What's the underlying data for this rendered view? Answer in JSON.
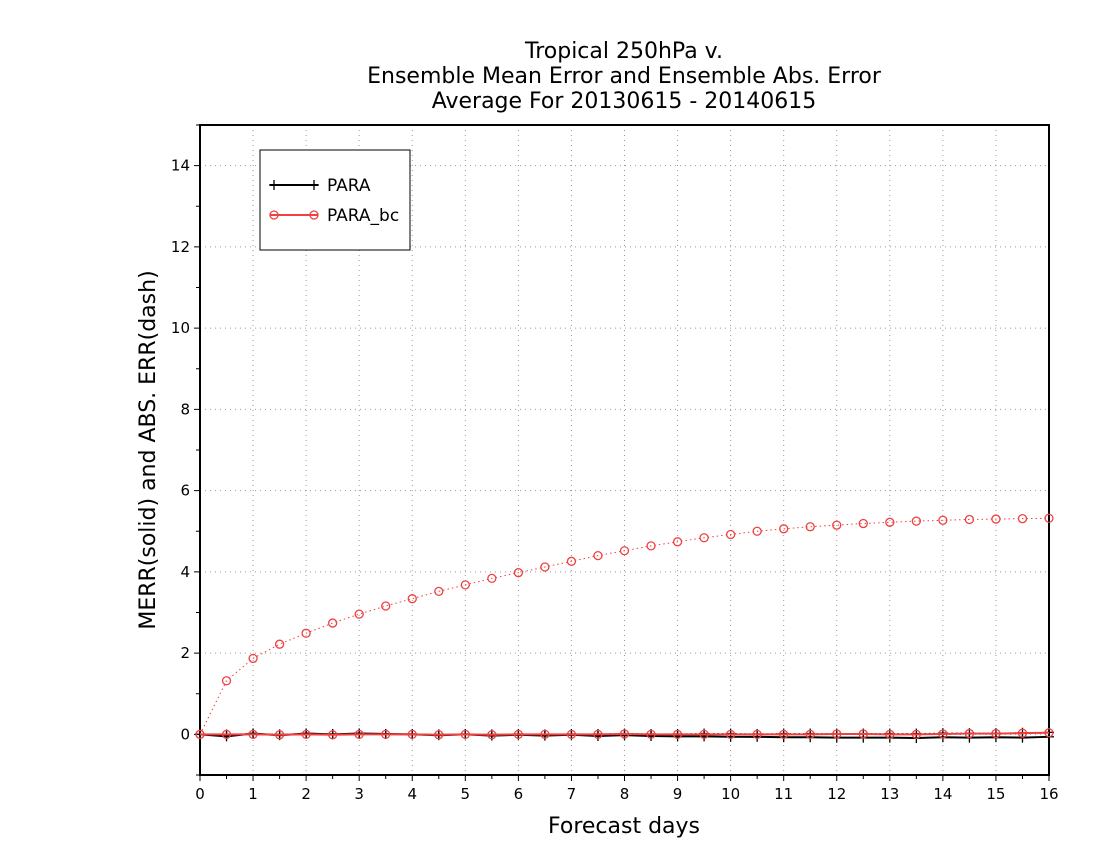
{
  "chart_data": {
    "type": "line",
    "title": [
      "Tropical 250hPa v.",
      "Ensemble Mean Error and Ensemble Abs. Error",
      "Average For 20130615 - 20140615"
    ],
    "xlabel": "Forecast days",
    "ylabel": "MERR(solid) and ABS. ERR(dash)",
    "xlim": [
      0,
      16
    ],
    "ylim": [
      -1,
      15
    ],
    "xticks": [
      "0",
      "1",
      "2",
      "3",
      "4",
      "5",
      "6",
      "7",
      "8",
      "9",
      "10",
      "11",
      "12",
      "13",
      "14",
      "15",
      "16"
    ],
    "yticks": [
      "0",
      "2",
      "4",
      "6",
      "8",
      "10",
      "12",
      "14"
    ],
    "grid": true,
    "legend_position": "top-left",
    "x": [
      0,
      0.5,
      1,
      1.5,
      2,
      2.5,
      3,
      3.5,
      4,
      4.5,
      5,
      5.5,
      6,
      6.5,
      7,
      7.5,
      8,
      8.5,
      9,
      9.5,
      10,
      10.5,
      11,
      11.5,
      12,
      12.5,
      13,
      13.5,
      14,
      14.5,
      15,
      15.5,
      16
    ],
    "series": [
      {
        "name": "PARA",
        "color": "#000000",
        "marker": "plus",
        "solid": [
          0,
          -0.05,
          0.02,
          -0.02,
          0.02,
          0,
          0.02,
          0.01,
          0,
          -0.02,
          0,
          -0.03,
          -0.01,
          -0.03,
          -0.01,
          -0.04,
          -0.02,
          -0.04,
          -0.05,
          -0.05,
          -0.06,
          -0.06,
          -0.07,
          -0.07,
          -0.08,
          -0.08,
          -0.08,
          -0.09,
          -0.07,
          -0.08,
          -0.07,
          -0.08,
          -0.06
        ],
        "dash": [
          0,
          0,
          0.02,
          0,
          0.02,
          0.01,
          0.02,
          0.01,
          0.01,
          0,
          0.01,
          0,
          0.01,
          0,
          0.01,
          0.01,
          0.02,
          0.01,
          0.01,
          0.02,
          0.02,
          0.01,
          0.02,
          0.02,
          0.02,
          0.02,
          0.02,
          0.02,
          0.03,
          0.03,
          0.03,
          0.04,
          0.05
        ]
      },
      {
        "name": "PARA_bc",
        "color": "#f04040",
        "marker": "circle",
        "solid": [
          0,
          0,
          0,
          -0.01,
          0,
          -0.01,
          0,
          0,
          0,
          -0.01,
          0,
          -0.01,
          0,
          0,
          0,
          0,
          0.01,
          0,
          0,
          0,
          0,
          0,
          0,
          0,
          0.01,
          0.01,
          0,
          0,
          0.01,
          0.02,
          0.02,
          0.03,
          0.04
        ],
        "dash": [
          0,
          1.32,
          1.87,
          2.22,
          2.49,
          2.74,
          2.96,
          3.16,
          3.34,
          3.52,
          3.68,
          3.84,
          3.98,
          4.12,
          4.26,
          4.4,
          4.52,
          4.64,
          4.74,
          4.84,
          4.92,
          5.0,
          5.06,
          5.11,
          5.15,
          5.19,
          5.22,
          5.25,
          5.27,
          5.29,
          5.3,
          5.31,
          5.32
        ]
      }
    ]
  }
}
